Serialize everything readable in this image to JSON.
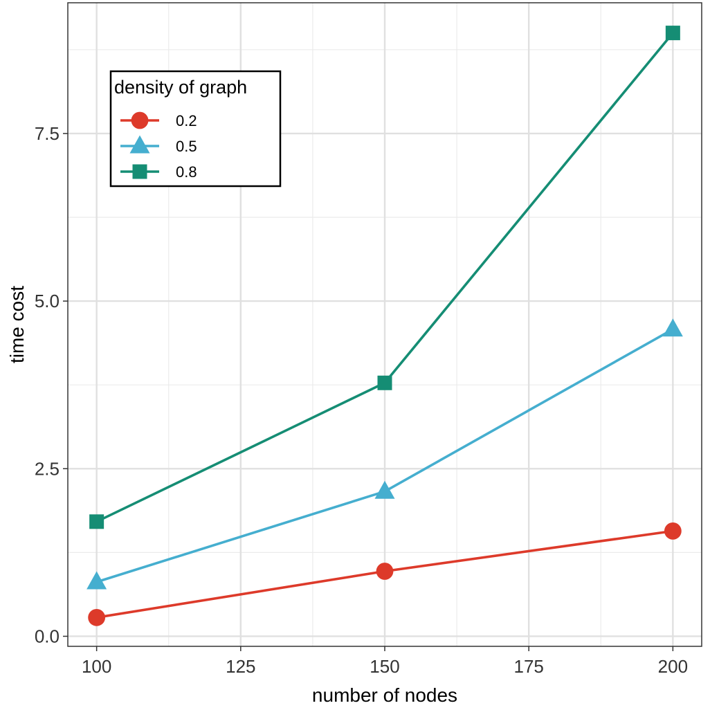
{
  "chart_data": {
    "type": "line",
    "xlabel": "number of nodes",
    "ylabel": "time cost",
    "x": [
      100,
      150,
      200
    ],
    "xlim": [
      95,
      205
    ],
    "ylim": [
      -0.15,
      9.45
    ],
    "xticks": [
      100,
      125,
      150,
      175,
      200
    ],
    "xtick_labels": [
      "100",
      "125",
      "150",
      "175",
      "200"
    ],
    "yticks": [
      0,
      2.5,
      5,
      7.5
    ],
    "ytick_labels": [
      "0.0",
      "2.5",
      "5.0",
      "7.5"
    ],
    "grid": true,
    "legend": {
      "title": "density of graph",
      "placement": "top-left"
    },
    "series": [
      {
        "name": "0.2",
        "color": "#dd3a2a",
        "marker": "circle",
        "values": [
          0.28,
          0.97,
          1.57
        ]
      },
      {
        "name": "0.5",
        "color": "#45aecf",
        "marker": "triangle",
        "values": [
          0.81,
          2.16,
          4.58
        ]
      },
      {
        "name": "0.8",
        "color": "#158d74",
        "marker": "square",
        "values": [
          1.71,
          3.78,
          9.0
        ]
      }
    ]
  }
}
